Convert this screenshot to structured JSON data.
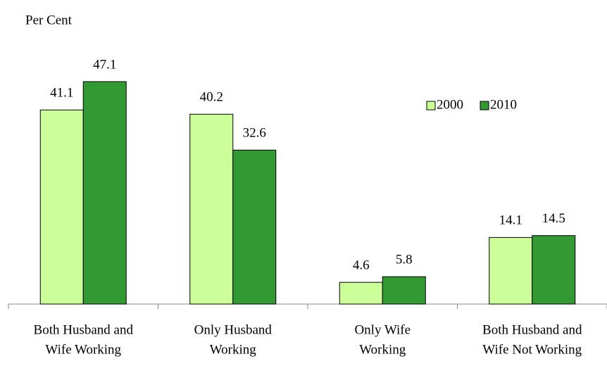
{
  "chart_data": {
    "type": "bar",
    "y_label": "Per Cent",
    "categories": [
      [
        "Both Husband and",
        "Wife Working"
      ],
      [
        "Only Husband",
        "Working"
      ],
      [
        "Only Wife",
        "Working"
      ],
      [
        "Both Husband and",
        "Wife Not Working"
      ]
    ],
    "series": [
      {
        "name": "2000",
        "color": "#ccff99",
        "values": [
          41.1,
          40.2,
          4.6,
          14.1
        ]
      },
      {
        "name": "2010",
        "color": "#339933",
        "values": [
          47.1,
          32.6,
          5.8,
          14.5
        ]
      }
    ],
    "ylim": [
      0,
      50
    ],
    "legend": "upper right"
  }
}
